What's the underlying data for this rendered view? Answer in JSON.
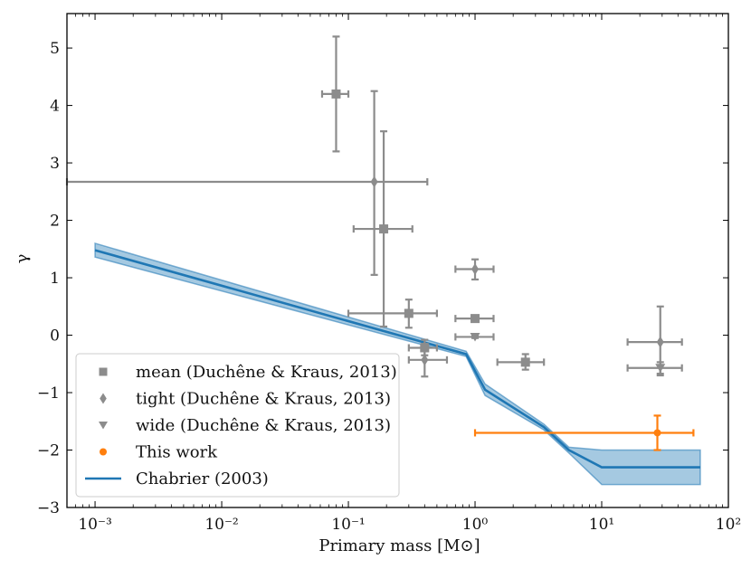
{
  "chart_data": {
    "type": "scatter",
    "title": "",
    "xlabel": "Primary mass [M⊙]",
    "ylabel": "γ",
    "xscale": "log",
    "xlim": [
      0.0006,
      100
    ],
    "ylim": [
      -3,
      5.6
    ],
    "x_tick_labels": [
      "10⁻³",
      "10⁻²",
      "10⁻¹",
      "10⁰",
      "10¹",
      "10²"
    ],
    "y_tick_labels": [
      "−3",
      "−2",
      "−1",
      "0",
      "1",
      "2",
      "3",
      "4",
      "5"
    ],
    "legend_position": "lower-left",
    "legend": [
      {
        "label": "mean (Duchêne & Kraus, 2013)",
        "marker": "square",
        "color": "#8c8c8c"
      },
      {
        "label": "tight (Duchêne & Kraus, 2013)",
        "marker": "diamond",
        "color": "#8c8c8c"
      },
      {
        "label": "wide (Duchêne & Kraus, 2013)",
        "marker": "triangle-down",
        "color": "#8c8c8c"
      },
      {
        "label": "This work",
        "marker": "circle",
        "color": "#ff7f0e"
      },
      {
        "label": "Chabrier (2003)",
        "marker": "line",
        "color": "#1f77b4"
      }
    ],
    "series": [
      {
        "name": "mean (Duchêne & Kraus, 2013)",
        "marker": "square",
        "color": "#8c8c8c",
        "points": [
          {
            "x": 0.08,
            "y": 4.2,
            "xlo": 0.062,
            "xhi": 0.1,
            "ylo": 3.2,
            "yhi": 5.2
          },
          {
            "x": 0.19,
            "y": 1.85,
            "xlo": 0.11,
            "xhi": 0.32,
            "ylo": 0.15,
            "yhi": 3.55
          },
          {
            "x": 0.3,
            "y": 0.38,
            "xlo": 0.1,
            "xhi": 0.5,
            "ylo": 0.13,
            "yhi": 0.62
          },
          {
            "x": 0.4,
            "y": -0.22,
            "xlo": 0.3,
            "xhi": 0.5,
            "ylo": -0.35,
            "yhi": -0.08
          },
          {
            "x": 1.0,
            "y": 0.29,
            "xlo": 0.7,
            "xhi": 1.4,
            "ylo": 0.27,
            "yhi": 0.31
          },
          {
            "x": 2.5,
            "y": -0.47,
            "xlo": 1.5,
            "xhi": 3.5,
            "ylo": -0.6,
            "yhi": -0.33
          }
        ]
      },
      {
        "name": "tight (Duchêne & Kraus, 2013)",
        "marker": "diamond",
        "color": "#8c8c8c",
        "points": [
          {
            "x": 0.16,
            "y": 2.67,
            "xlo": 0.0006,
            "xhi": 0.42,
            "ylo": 1.05,
            "yhi": 4.25
          },
          {
            "x": 0.4,
            "y": -0.43,
            "xlo": 0.3,
            "xhi": 0.6,
            "ylo": -0.72,
            "yhi": -0.15
          },
          {
            "x": 1.0,
            "y": 1.15,
            "xlo": 0.7,
            "xhi": 1.4,
            "ylo": 0.97,
            "yhi": 1.32
          },
          {
            "x": 29,
            "y": -0.12,
            "xlo": 16,
            "xhi": 43,
            "ylo": -0.7,
            "yhi": 0.5
          }
        ]
      },
      {
        "name": "wide (Duchêne & Kraus, 2013)",
        "marker": "triangle-down",
        "color": "#8c8c8c",
        "points": [
          {
            "x": 1.0,
            "y": -0.03,
            "xlo": 0.7,
            "xhi": 1.4,
            "ylo": -0.05,
            "yhi": -0.01
          },
          {
            "x": 29,
            "y": -0.57,
            "xlo": 16,
            "xhi": 43,
            "ylo": -0.67,
            "yhi": -0.47
          }
        ]
      },
      {
        "name": "This work",
        "marker": "circle",
        "color": "#ff7f0e",
        "points": [
          {
            "x": 27.5,
            "y": -1.7,
            "xlo": 1.0,
            "xhi": 53,
            "ylo": -2.0,
            "yhi": -1.4
          }
        ]
      },
      {
        "name": "Chabrier (2003)",
        "marker": "line",
        "color": "#1f77b4",
        "x": [
          0.001,
          0.85,
          1.2,
          3.5,
          5.5,
          10,
          60
        ],
        "y": [
          1.48,
          -0.33,
          -0.95,
          -1.6,
          -2.0,
          -2.3,
          -2.3
        ],
        "band_lower": [
          1.36,
          -0.37,
          -1.05,
          -1.65,
          -2.05,
          -2.6,
          -2.6
        ],
        "band_upper": [
          1.6,
          -0.28,
          -0.85,
          -1.55,
          -1.95,
          -2.0,
          -2.0
        ]
      }
    ]
  }
}
